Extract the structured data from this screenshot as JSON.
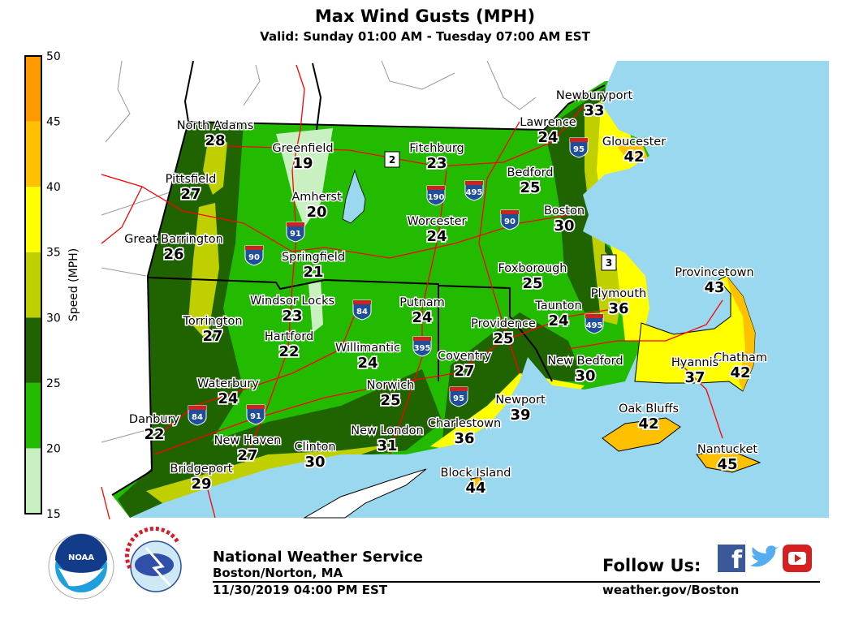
{
  "header": {
    "title": "Max Wind Gusts (MPH)",
    "subtitle": "Valid: Sunday 01:00 AM - Tuesday 07:00 AM EST"
  },
  "legend": {
    "label": "Speed (MPH)",
    "ticks": [
      "15",
      "20",
      "25",
      "30",
      "35",
      "40",
      "45",
      "50"
    ],
    "bands": [
      {
        "range": "15-20",
        "color": "#c8f0c0"
      },
      {
        "range": "20-25",
        "color": "#22bb00"
      },
      {
        "range": "25-30",
        "color": "#1f6400"
      },
      {
        "range": "30-35",
        "color": "#c0cf00"
      },
      {
        "range": "35-40",
        "color": "#ffff00"
      },
      {
        "range": "40-45",
        "color": "#ffc000"
      },
      {
        "range": "45-50",
        "color": "#ff9900"
      }
    ]
  },
  "colors": {
    "water": "#99d8ee",
    "land": "#ffffff",
    "roads": "#ff0000",
    "borders": "#000000"
  },
  "cities": [
    {
      "name": "North Adams",
      "gust": "28"
    },
    {
      "name": "Greenfield",
      "gust": "19"
    },
    {
      "name": "Fitchburg",
      "gust": "23"
    },
    {
      "name": "Lawrence",
      "gust": "24"
    },
    {
      "name": "Newburyport",
      "gust": "33"
    },
    {
      "name": "Gloucester",
      "gust": "42"
    },
    {
      "name": "Pittsfield",
      "gust": "27"
    },
    {
      "name": "Amherst",
      "gust": "20"
    },
    {
      "name": "Bedford",
      "gust": "25"
    },
    {
      "name": "Worcester",
      "gust": "24"
    },
    {
      "name": "Boston",
      "gust": "30"
    },
    {
      "name": "Great Barrington",
      "gust": "26"
    },
    {
      "name": "Springfield",
      "gust": "21"
    },
    {
      "name": "Foxborough",
      "gust": "25"
    },
    {
      "name": "Provincetown",
      "gust": "43"
    },
    {
      "name": "Plymouth",
      "gust": "36"
    },
    {
      "name": "Windsor Locks",
      "gust": "23"
    },
    {
      "name": "Putnam",
      "gust": "24"
    },
    {
      "name": "Taunton",
      "gust": "24"
    },
    {
      "name": "Torrington",
      "gust": "27"
    },
    {
      "name": "Providence",
      "gust": "25"
    },
    {
      "name": "Hartford",
      "gust": "22"
    },
    {
      "name": "Willimantic",
      "gust": "24"
    },
    {
      "name": "Coventry",
      "gust": "27"
    },
    {
      "name": "Chatham",
      "gust": "42"
    },
    {
      "name": "New Bedford",
      "gust": "30"
    },
    {
      "name": "Hyannis",
      "gust": "37"
    },
    {
      "name": "Norwich",
      "gust": "25"
    },
    {
      "name": "Waterbury",
      "gust": "24"
    },
    {
      "name": "Newport",
      "gust": "39"
    },
    {
      "name": "Oak Bluffs",
      "gust": "42"
    },
    {
      "name": "Danbury",
      "gust": "22"
    },
    {
      "name": "Charlestown",
      "gust": "36"
    },
    {
      "name": "New London",
      "gust": "31"
    },
    {
      "name": "New Haven",
      "gust": "27"
    },
    {
      "name": "Clinton",
      "gust": "30"
    },
    {
      "name": "Nantucket",
      "gust": "45"
    },
    {
      "name": "Bridgeport",
      "gust": "29"
    },
    {
      "name": "Block Island",
      "gust": "44"
    }
  ],
  "highways": [
    {
      "label": "90"
    },
    {
      "label": "91"
    },
    {
      "label": "190"
    },
    {
      "label": "495"
    },
    {
      "label": "90"
    },
    {
      "label": "95"
    },
    {
      "label": "84"
    },
    {
      "label": "395"
    },
    {
      "label": "495"
    },
    {
      "label": "95"
    },
    {
      "label": "84"
    },
    {
      "label": "91"
    }
  ],
  "routes": [
    {
      "label": "2"
    },
    {
      "label": "3"
    }
  ],
  "footer": {
    "org": "National Weather Service",
    "office": "Boston/Norton, MA",
    "issued": "11/30/2019 04:00 PM EST",
    "follow": "Follow Us:",
    "website": "weather.gov/Boston",
    "noaa_logo_text": "NOAA",
    "nws_logo_text": "NATIONAL WEATHER SERVICE",
    "social": [
      "facebook-icon",
      "twitter-icon",
      "youtube-icon"
    ]
  }
}
